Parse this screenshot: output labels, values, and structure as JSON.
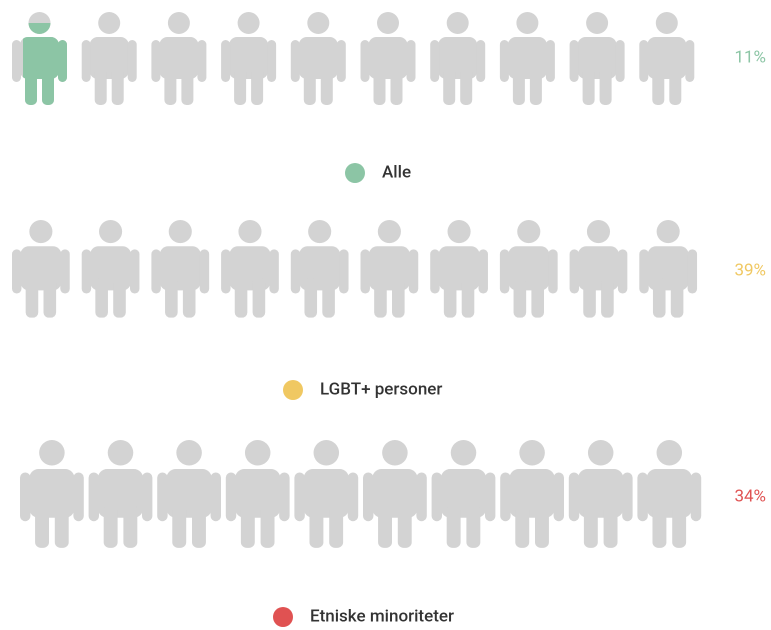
{
  "chart_data": {
    "type": "pictogram",
    "xlim": [
      0,
      100
    ],
    "series": [
      {
        "name": "Alle",
        "color": "#8cc5a5",
        "values": [
          11
        ],
        "value_labels": [
          "11%"
        ]
      },
      {
        "name": "LGBT+ personer",
        "color": "#f0c862",
        "values": [
          39
        ],
        "value_labels": [
          "39%"
        ]
      },
      {
        "name": "Etniske minoriteter",
        "color": "#e05252",
        "values": [
          34
        ],
        "value_labels": [
          "34%"
        ]
      }
    ]
  }
}
